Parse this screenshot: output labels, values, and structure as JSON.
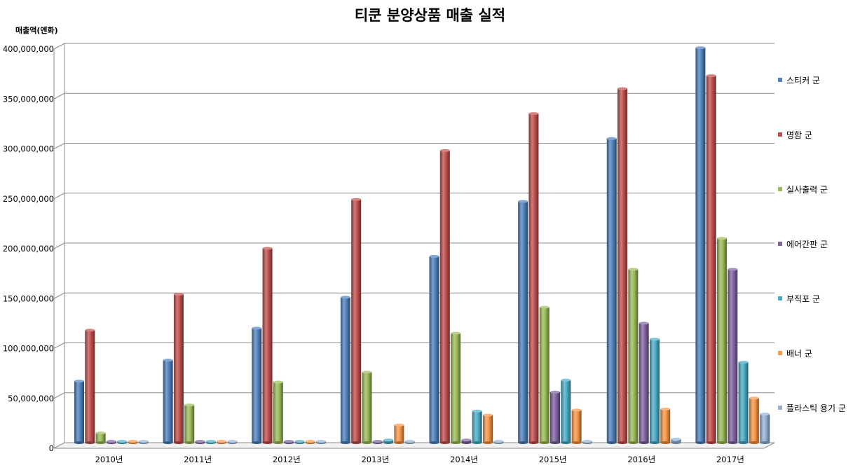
{
  "chart_data": {
    "type": "bar",
    "title": "티쿤 분양상품 매출 실적",
    "ylabel": "매출액(엔화)",
    "xlabel": "",
    "ylim": [
      0,
      400000000
    ],
    "yticks": [
      "0",
      "50,000,000",
      "100,000,000",
      "150,000,000",
      "200,000,000",
      "250,000,000",
      "300,000,000",
      "350,000,000",
      "400,000,000"
    ],
    "categories": [
      "2010년",
      "2011년",
      "2012년",
      "2013년",
      "2014년",
      "2015년",
      "2016년",
      "2017년"
    ],
    "grid": true,
    "legend_position": "right",
    "series": [
      {
        "name": "스티커 군",
        "color": "#4f81bd",
        "values": [
          61000000,
          82000000,
          114000000,
          145000000,
          186000000,
          241000000,
          304000000,
          395000000
        ]
      },
      {
        "name": "명함 군",
        "color": "#c0504d",
        "values": [
          112000000,
          148000000,
          194000000,
          243000000,
          292000000,
          329000000,
          354000000,
          367000000
        ]
      },
      {
        "name": "실사출력 군",
        "color": "#9bbb59",
        "values": [
          9000000,
          37000000,
          60000000,
          70000000,
          109000000,
          135000000,
          173000000,
          204000000
        ]
      },
      {
        "name": "에어간판 군",
        "color": "#8064a2",
        "values": [
          0,
          0,
          0,
          0,
          2000000,
          50000000,
          119000000,
          173000000
        ]
      },
      {
        "name": "부직포 군",
        "color": "#4bacc6",
        "values": [
          0,
          0,
          0,
          2000000,
          31000000,
          62000000,
          103000000,
          80000000
        ]
      },
      {
        "name": "배너 군",
        "color": "#f79646",
        "values": [
          0,
          0,
          0,
          17000000,
          27000000,
          32000000,
          33000000,
          44000000
        ]
      },
      {
        "name": "플라스틱 용기 군",
        "color": "#95b3d7",
        "values": [
          0,
          0,
          0,
          0,
          0,
          0,
          3000000,
          28000000
        ]
      }
    ]
  }
}
